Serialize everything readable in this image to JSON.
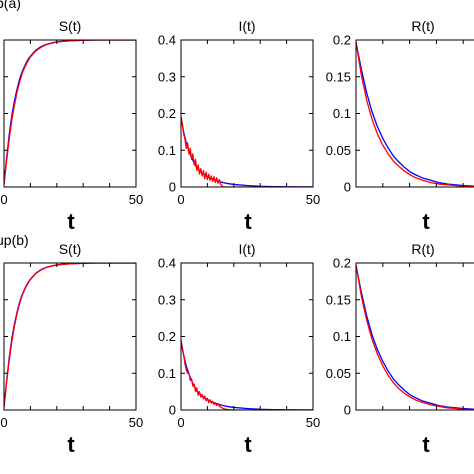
{
  "figure": {
    "row_labels": [
      "b(a)",
      "up(b)"
    ]
  },
  "colors": {
    "series_a": "#ff0000",
    "series_b": "#0000ff"
  },
  "chart_data": [
    {
      "type": "line",
      "title": "S(t)",
      "xlabel": "t",
      "ylabel": "",
      "xlim": [
        0,
        50
      ],
      "ylim": [
        0,
        1
      ],
      "x_ticks": [
        "0",
        "50"
      ],
      "y_ticks": [],
      "grid": false,
      "legend": "none",
      "series": [
        {
          "color": "#0000ff",
          "x": [
            0,
            1,
            2,
            3,
            4,
            5,
            6,
            7,
            8,
            9,
            10,
            12,
            14,
            16,
            18,
            20,
            22,
            25,
            28,
            32,
            36,
            40,
            45,
            50
          ],
          "y": [
            0.02,
            0.2,
            0.36,
            0.49,
            0.59,
            0.67,
            0.74,
            0.79,
            0.83,
            0.865,
            0.89,
            0.93,
            0.955,
            0.97,
            0.98,
            0.987,
            0.991,
            0.995,
            0.997,
            0.999,
            1,
            1,
            1,
            1
          ]
        },
        {
          "color": "#ff0000",
          "x": [
            0,
            1,
            2,
            3,
            4,
            5,
            6,
            7,
            8,
            9,
            10,
            12,
            14,
            16,
            18,
            20,
            22,
            25,
            28,
            32,
            36,
            40,
            45,
            50
          ],
          "y": [
            0.02,
            0.18,
            0.33,
            0.46,
            0.56,
            0.65,
            0.72,
            0.78,
            0.82,
            0.855,
            0.885,
            0.925,
            0.95,
            0.968,
            0.978,
            0.986,
            0.99,
            0.994,
            0.997,
            0.999,
            1,
            1,
            1,
            1
          ]
        }
      ]
    },
    {
      "type": "line",
      "title": "I(t)",
      "xlabel": "t",
      "ylabel": "",
      "xlim": [
        0,
        50
      ],
      "ylim": [
        0,
        0.4
      ],
      "x_ticks": [
        "0",
        "50"
      ],
      "y_ticks": [
        "0",
        "0.1",
        "0.2",
        "0.3",
        "0.4"
      ],
      "grid": false,
      "legend": "none",
      "series": [
        {
          "color": "#0000ff",
          "x": [
            0,
            1,
            2,
            3,
            4,
            5,
            6,
            8,
            10,
            12,
            14,
            16,
            18,
            20,
            25,
            30,
            35,
            40,
            45,
            50
          ],
          "y": [
            0.19,
            0.15,
            0.12,
            0.098,
            0.08,
            0.065,
            0.053,
            0.038,
            0.028,
            0.021,
            0.016,
            0.012,
            0.009,
            0.007,
            0.004,
            0.002,
            0.001,
            0.0005,
            0.0002,
            0.0001
          ]
        },
        {
          "color": "#ff0000",
          "x": [
            0,
            0.5,
            1,
            1.5,
            2,
            2.5,
            3,
            3.5,
            4,
            4.5,
            5,
            5.5,
            6,
            6.5,
            7,
            7.5,
            8,
            8.5,
            9,
            9.5,
            10,
            10.5,
            11,
            11.5,
            12,
            12.5,
            13,
            13.5,
            14,
            14.5,
            15,
            16,
            17,
            18,
            20,
            25,
            30,
            35,
            40,
            45,
            50
          ],
          "y": [
            0.19,
            0.17,
            0.145,
            0.13,
            0.105,
            0.12,
            0.09,
            0.105,
            0.075,
            0.09,
            0.06,
            0.075,
            0.045,
            0.06,
            0.035,
            0.05,
            0.03,
            0.045,
            0.022,
            0.04,
            0.02,
            0.035,
            0.018,
            0.03,
            0.015,
            0.028,
            0.012,
            0.025,
            0.01,
            0.02,
            0.008,
            0,
            0,
            0,
            0,
            0,
            0,
            0,
            0,
            0,
            0
          ]
        }
      ]
    },
    {
      "type": "line",
      "title": "R(t)",
      "xlabel": "t",
      "ylabel": "",
      "xlim": [
        0,
        50
      ],
      "ylim": [
        0,
        0.2
      ],
      "x_ticks": [],
      "y_ticks": [
        "0",
        "0.05",
        "0.1",
        "0.15",
        "0.2"
      ],
      "grid": false,
      "legend": "none",
      "series": [
        {
          "color": "#0000ff",
          "x": [
            0,
            2,
            4,
            6,
            8,
            10,
            12,
            14,
            16,
            18,
            20,
            22,
            25,
            28,
            31,
            34,
            37,
            40,
            45,
            50
          ],
          "y": [
            0.197,
            0.16,
            0.128,
            0.102,
            0.082,
            0.066,
            0.053,
            0.042,
            0.034,
            0.027,
            0.021,
            0.017,
            0.012,
            0.009,
            0.006,
            0.004,
            0.003,
            0.002,
            0.001,
            0.0005
          ]
        },
        {
          "color": "#ff0000",
          "x": [
            0,
            2,
            4,
            6,
            8,
            10,
            12,
            14,
            16,
            18,
            20,
            22,
            25,
            28,
            31,
            34,
            37,
            40,
            45,
            50
          ],
          "y": [
            0.197,
            0.152,
            0.118,
            0.092,
            0.072,
            0.057,
            0.045,
            0.035,
            0.028,
            0.022,
            0.017,
            0.013,
            0.009,
            0.006,
            0.004,
            0.003,
            0.002,
            0.001,
            0.0005,
            0.0002
          ]
        }
      ]
    },
    {
      "type": "line",
      "title": "S(t)",
      "xlabel": "t",
      "ylabel": "",
      "xlim": [
        0,
        50
      ],
      "ylim": [
        0,
        1
      ],
      "x_ticks": [
        "0",
        "50"
      ],
      "y_ticks": [],
      "grid": false,
      "legend": "none",
      "series": [
        {
          "color": "#0000ff",
          "x": [
            0,
            1,
            2,
            3,
            4,
            5,
            6,
            7,
            8,
            9,
            10,
            12,
            14,
            16,
            18,
            20,
            22,
            25,
            28,
            32,
            36,
            40,
            45,
            50
          ],
          "y": [
            0.02,
            0.2,
            0.36,
            0.49,
            0.59,
            0.67,
            0.74,
            0.79,
            0.83,
            0.865,
            0.89,
            0.93,
            0.955,
            0.97,
            0.98,
            0.987,
            0.991,
            0.995,
            0.997,
            0.999,
            1,
            1,
            1,
            1
          ]
        },
        {
          "color": "#ff0000",
          "x": [
            0,
            1,
            2,
            3,
            4,
            5,
            6,
            7,
            8,
            9,
            10,
            12,
            14,
            16,
            18,
            20,
            22,
            25,
            28,
            32,
            36,
            40,
            45,
            50
          ],
          "y": [
            0.02,
            0.19,
            0.34,
            0.47,
            0.575,
            0.66,
            0.73,
            0.785,
            0.825,
            0.86,
            0.887,
            0.928,
            0.953,
            0.969,
            0.979,
            0.986,
            0.99,
            0.994,
            0.997,
            0.999,
            1,
            1,
            1,
            1
          ]
        }
      ]
    },
    {
      "type": "line",
      "title": "I(t)",
      "xlabel": "t",
      "ylabel": "",
      "xlim": [
        0,
        50
      ],
      "ylim": [
        0,
        0.4
      ],
      "x_ticks": [
        "0",
        "50"
      ],
      "y_ticks": [
        "0",
        "0.1",
        "0.2",
        "0.3",
        "0.4"
      ],
      "grid": false,
      "legend": "none",
      "series": [
        {
          "color": "#0000ff",
          "x": [
            0,
            1,
            2,
            3,
            4,
            5,
            6,
            8,
            10,
            12,
            14,
            16,
            18,
            20,
            25,
            30,
            35,
            40,
            45,
            50
          ],
          "y": [
            0.19,
            0.15,
            0.12,
            0.098,
            0.08,
            0.065,
            0.053,
            0.038,
            0.028,
            0.021,
            0.016,
            0.012,
            0.009,
            0.007,
            0.004,
            0.002,
            0.001,
            0.0005,
            0.0002,
            0.0001
          ]
        },
        {
          "color": "#ff0000",
          "x": [
            0,
            0.5,
            1,
            1.5,
            2,
            2.5,
            3,
            3.5,
            4,
            4.5,
            5,
            5.5,
            6,
            6.5,
            7,
            7.5,
            8,
            8.5,
            9,
            9.5,
            10,
            10.5,
            11,
            11.5,
            12,
            12.5,
            13,
            13.5,
            14,
            14.5,
            15,
            16,
            17,
            18,
            20,
            25,
            30,
            35,
            40,
            45,
            50
          ],
          "y": [
            0.19,
            0.165,
            0.15,
            0.125,
            0.11,
            0.1,
            0.1,
            0.08,
            0.085,
            0.065,
            0.07,
            0.05,
            0.06,
            0.04,
            0.05,
            0.035,
            0.042,
            0.03,
            0.038,
            0.025,
            0.032,
            0.02,
            0.028,
            0.018,
            0.024,
            0.015,
            0.02,
            0.012,
            0.018,
            0.01,
            0.008,
            0.004,
            0.002,
            0.001,
            0,
            0,
            0,
            0,
            0,
            0,
            0
          ]
        }
      ]
    },
    {
      "type": "line",
      "title": "R(t)",
      "xlabel": "t",
      "ylabel": "",
      "xlim": [
        0,
        50
      ],
      "ylim": [
        0,
        0.2
      ],
      "x_ticks": [],
      "y_ticks": [
        "0",
        "0.05",
        "0.1",
        "0.15",
        "0.2"
      ],
      "grid": false,
      "legend": "none",
      "series": [
        {
          "color": "#0000ff",
          "x": [
            0,
            2,
            4,
            6,
            8,
            10,
            12,
            14,
            16,
            18,
            20,
            22,
            25,
            28,
            31,
            34,
            37,
            40,
            45,
            50
          ],
          "y": [
            0.197,
            0.16,
            0.128,
            0.102,
            0.082,
            0.066,
            0.053,
            0.042,
            0.034,
            0.027,
            0.021,
            0.017,
            0.012,
            0.009,
            0.006,
            0.004,
            0.003,
            0.002,
            0.001,
            0.0005
          ]
        },
        {
          "color": "#ff0000",
          "x": [
            0,
            2,
            4,
            6,
            8,
            10,
            12,
            14,
            16,
            18,
            20,
            22,
            25,
            28,
            31,
            34,
            37,
            40,
            45,
            50
          ],
          "y": [
            0.197,
            0.155,
            0.122,
            0.096,
            0.076,
            0.06,
            0.047,
            0.037,
            0.029,
            0.023,
            0.018,
            0.014,
            0.01,
            0.007,
            0.005,
            0.003,
            0.002,
            0.001,
            0.0005,
            0.0002
          ]
        }
      ]
    }
  ]
}
